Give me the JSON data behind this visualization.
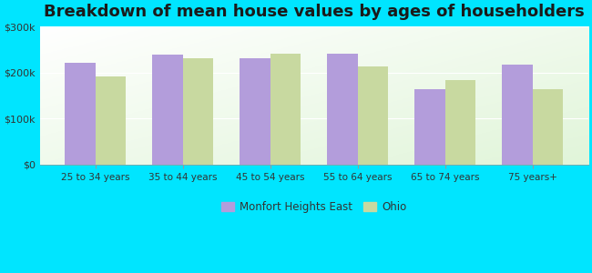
{
  "title": "Breakdown of mean house values by ages of householders",
  "categories": [
    "25 to 34 years",
    "35 to 44 years",
    "45 to 54 years",
    "55 to 64 years",
    "65 to 74 years",
    "75 years+"
  ],
  "monfort_values": [
    222000,
    240000,
    232000,
    242000,
    163000,
    218000
  ],
  "ohio_values": [
    191000,
    232000,
    242000,
    214000,
    183000,
    163000
  ],
  "monfort_color": "#b39ddb",
  "ohio_color": "#c8d9a0",
  "background_outer": "#00e5ff",
  "ylim": [
    0,
    300000
  ],
  "yticks": [
    0,
    100000,
    200000,
    300000
  ],
  "ytick_labels": [
    "$0",
    "$100k",
    "$200k",
    "$300k"
  ],
  "legend_monfort": "Monfort Heights East",
  "legend_ohio": "Ohio",
  "title_fontsize": 13,
  "bar_width": 0.35
}
